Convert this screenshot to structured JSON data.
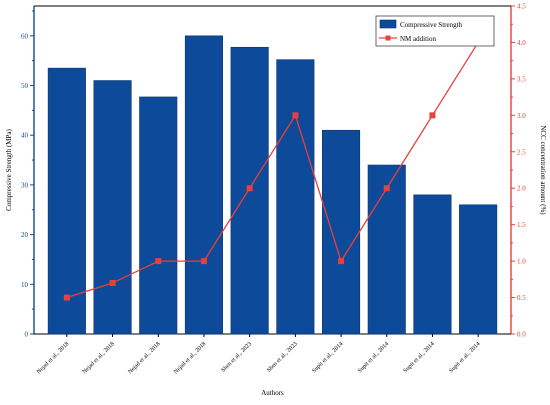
{
  "chart_data": {
    "type": "bar",
    "categories": [
      "Nejad et al., 2018",
      "Nejad et al., 2018",
      "Nejad et al., 2018",
      "Nejad et al., 2018",
      "Shen  et al., 2023",
      "Shen  et al., 2023",
      "Supit et al., 2014",
      "Supit et al., 2014",
      "Supit et al., 2014",
      "Supit et al., 2014"
    ],
    "series": [
      {
        "name": "Compressive Strength",
        "type": "bar",
        "axis": "left",
        "color": "#0e4a9a",
        "values": [
          53.5,
          51,
          47.7,
          60,
          57.7,
          55.2,
          41,
          34,
          28,
          26
        ]
      },
      {
        "name": "NM addition",
        "type": "line",
        "axis": "right",
        "color": "#e8403a",
        "values": [
          0.5,
          0.7,
          1.0,
          1.0,
          2.0,
          3.0,
          1.0,
          2.0,
          3.0,
          4.0
        ]
      }
    ],
    "xlabel": "Authors",
    "ylabel": "Compressive Strength (MPa)",
    "ylabel_right": "NCC concentration amount (%)",
    "ylim": [
      0,
      66
    ],
    "ylim_right": [
      0,
      4.5
    ],
    "yticks": [
      "0",
      "10",
      "20",
      "30",
      "40",
      "50",
      "60"
    ],
    "yticks_right": [
      "0.0",
      "0.5",
      "1.0",
      "1.5",
      "2.0",
      "2.5",
      "3.0",
      "3.5",
      "4.0",
      "4.5"
    ],
    "grid": false,
    "legend": "top-right"
  }
}
